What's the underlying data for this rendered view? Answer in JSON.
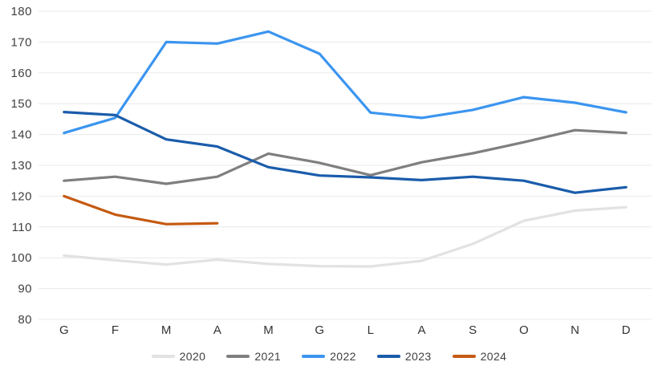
{
  "chart_data": {
    "type": "line",
    "title": "",
    "categories": [
      "G",
      "F",
      "M",
      "A",
      "M",
      "G",
      "L",
      "A",
      "S",
      "O",
      "N",
      "D"
    ],
    "y_ticks": [
      180,
      170,
      160,
      150,
      140,
      130,
      120,
      110,
      100,
      90,
      80
    ],
    "ylim": [
      80,
      180
    ],
    "y_step": 10,
    "grid": "horizontal",
    "legend_position": "bottom-center",
    "series": [
      {
        "name": "2020",
        "color": "#e2e2e2",
        "values": [
          100.7,
          99.2,
          97.8,
          99.4,
          98.0,
          97.3,
          97.2,
          99.0,
          104.5,
          112.0,
          115.3,
          116.4
        ]
      },
      {
        "name": "2021",
        "color": "#7f7f7f",
        "values": [
          125.0,
          126.3,
          124.0,
          126.3,
          133.8,
          130.8,
          126.8,
          131.0,
          133.9,
          137.5,
          141.4,
          140.5
        ]
      },
      {
        "name": "2022",
        "color": "#3b95f0",
        "values": [
          140.5,
          145.4,
          170.0,
          169.5,
          173.4,
          166.2,
          147.1,
          145.4,
          148.0,
          152.1,
          150.3,
          147.2
        ]
      },
      {
        "name": "2023",
        "color": "#1a5cab",
        "values": [
          147.3,
          146.3,
          138.4,
          136.1,
          129.4,
          126.7,
          126.1,
          125.2,
          126.3,
          125.0,
          121.1,
          122.9
        ]
      },
      {
        "name": "2024",
        "color": "#c55a11",
        "values": [
          120.0,
          114.0,
          110.9,
          111.2
        ]
      }
    ]
  },
  "colors": {
    "background": "#ffffff",
    "gridline": "#e9e9e9",
    "axis_text": "#404040"
  }
}
